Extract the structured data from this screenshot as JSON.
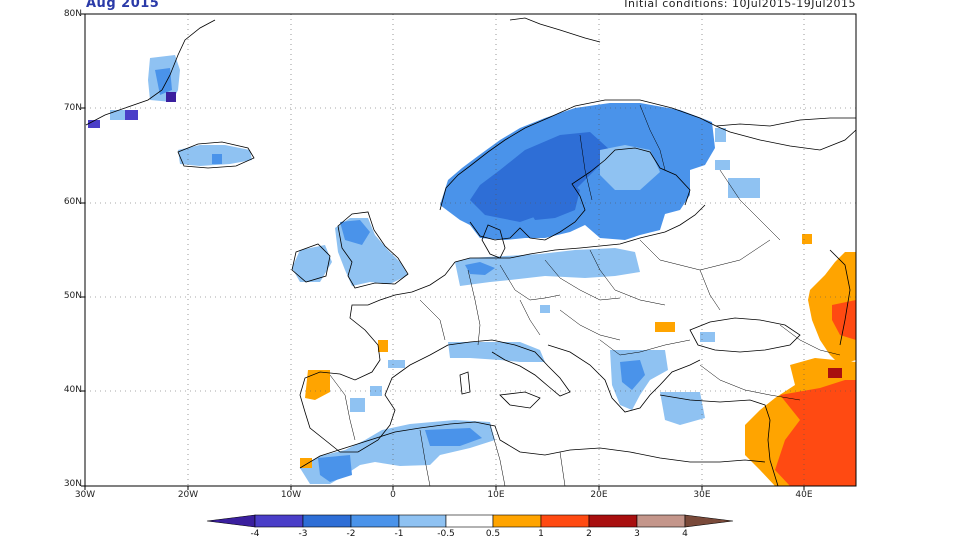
{
  "header": {
    "month": "Aug 2015",
    "init": "Initial conditions: 10Jul2015-19Jul2015"
  },
  "axes": {
    "lon_labels": [
      "30W",
      "20W",
      "10W",
      "0",
      "10E",
      "20E",
      "30E",
      "40E"
    ],
    "lat_labels": [
      "80N",
      "70N",
      "60N",
      "50N",
      "40N",
      "30N"
    ],
    "lon_range": [
      -30,
      45
    ],
    "lat_range": [
      30,
      80
    ]
  },
  "colorbar": {
    "labels": [
      "-4",
      "-3",
      "-2",
      "-1",
      "-0.5",
      "0.5",
      "1",
      "2",
      "3",
      "4"
    ],
    "colors": [
      "#3a1f9e",
      "#4a3ec8",
      "#2e6ed6",
      "#4a93ea",
      "#8fc2f2",
      "#ffffff",
      "#ffa400",
      "#ff4a12",
      "#a80f0f",
      "#c4968b",
      "#7a4a3a"
    ]
  },
  "map": {
    "coast_color": "#000000",
    "grid_style": "dotted"
  }
}
